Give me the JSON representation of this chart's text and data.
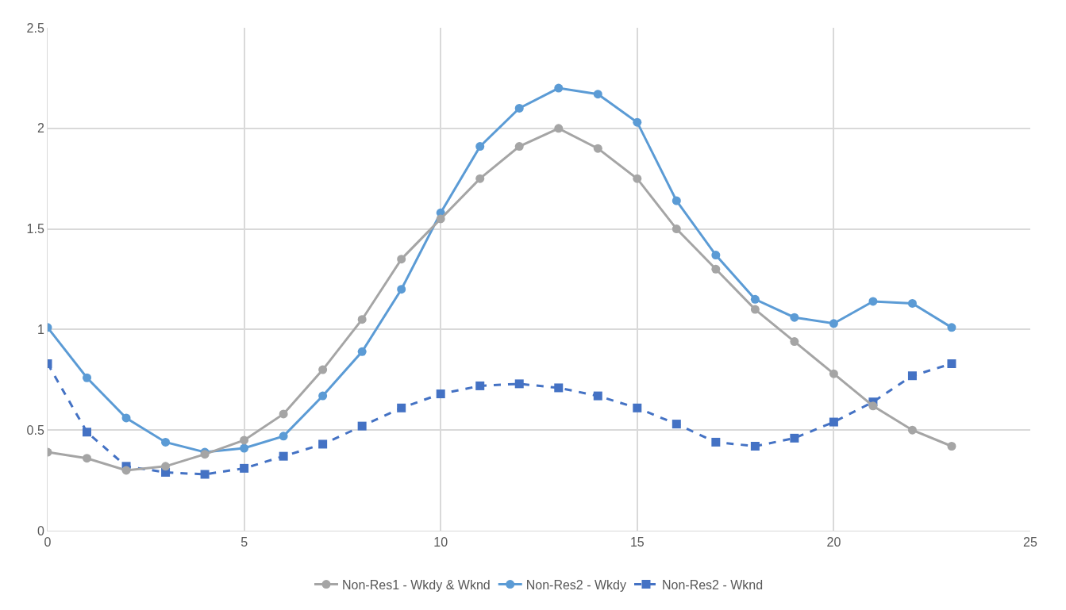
{
  "chart_data": {
    "type": "line",
    "xlim": [
      0,
      25
    ],
    "xticks": [
      0,
      5,
      10,
      15,
      20,
      25
    ],
    "ylim": [
      0,
      2.5
    ],
    "yticks": [
      0,
      0.5,
      1,
      1.5,
      2,
      2.5
    ],
    "grid": true,
    "legend": "bottom",
    "x": [
      0,
      1,
      2,
      3,
      4,
      5,
      6,
      7,
      8,
      9,
      10,
      11,
      12,
      13,
      14,
      15,
      16,
      17,
      18,
      19,
      20,
      21,
      22,
      23
    ],
    "series": [
      {
        "name": "Non-Res1 - Wkdy & Wknd",
        "color": "#a5a5a5",
        "marker": "circle",
        "line_style": "solid",
        "values": [
          0.39,
          0.36,
          0.3,
          0.32,
          0.38,
          0.45,
          0.58,
          0.8,
          1.05,
          1.35,
          1.55,
          1.75,
          1.91,
          2.0,
          1.9,
          1.75,
          1.5,
          1.3,
          1.1,
          0.94,
          0.78,
          0.62,
          0.5,
          0.42
        ]
      },
      {
        "name": "Non-Res2 - Wkdy",
        "color": "#5b9bd5",
        "marker": "circle",
        "line_style": "solid",
        "values": [
          1.01,
          0.76,
          0.56,
          0.44,
          0.39,
          0.41,
          0.47,
          0.67,
          0.89,
          1.2,
          1.58,
          1.91,
          2.1,
          2.2,
          2.17,
          2.03,
          1.64,
          1.37,
          1.15,
          1.06,
          1.03,
          1.14,
          1.13,
          1.01
        ]
      },
      {
        "name": "Non-Res2 - Wknd",
        "color": "#4472c4",
        "marker": "square",
        "line_style": "dashed",
        "values": [
          0.83,
          0.49,
          0.32,
          0.29,
          0.28,
          0.31,
          0.37,
          0.43,
          0.52,
          0.61,
          0.68,
          0.72,
          0.73,
          0.71,
          0.67,
          0.61,
          0.53,
          0.44,
          0.42,
          0.46,
          0.54,
          0.64,
          0.77,
          0.83
        ]
      }
    ]
  }
}
